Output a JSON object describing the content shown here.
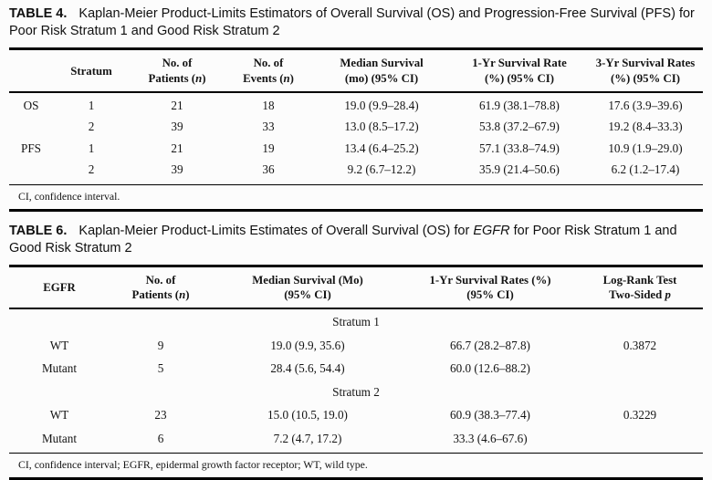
{
  "table4": {
    "label": "TABLE 4.",
    "title": "Kaplan-Meier Product-Limits Estimators of Overall Survival (OS) and Progression-Free Survival (PFS) for Poor Risk Stratum 1 and Good Risk Stratum 2",
    "headers": {
      "col0": "",
      "stratum": "Stratum",
      "patients": "No. of<br>Patients (<i>n</i>)",
      "events": "No. of<br>Events (<i>n</i>)",
      "median": "Median Survival<br>(mo) (95% CI)",
      "yr1": "1-Yr Survival Rate<br>(%) (95% CI)",
      "yr3": "3-Yr Survival Rates<br>(%) (95% CI)"
    },
    "rows": [
      {
        "group": "OS",
        "stratum": "1",
        "patients": "21",
        "events": "18",
        "median": "19.0 (9.9–28.4)",
        "yr1": "61.9 (38.1–78.8)",
        "yr3": "17.6 (3.9–39.6)"
      },
      {
        "group": "",
        "stratum": "2",
        "patients": "39",
        "events": "33",
        "median": "13.0 (8.5–17.2)",
        "yr1": "53.8 (37.2–67.9)",
        "yr3": "19.2 (8.4–33.3)"
      },
      {
        "group": "PFS",
        "stratum": "1",
        "patients": "21",
        "events": "19",
        "median": "13.4 (6.4–25.2)",
        "yr1": "57.1 (33.8–74.9)",
        "yr3": "10.9 (1.9–29.0)"
      },
      {
        "group": "",
        "stratum": "2",
        "patients": "39",
        "events": "36",
        "median": "9.2 (6.7–12.2)",
        "yr1": "35.9 (21.4–50.6)",
        "yr3": "6.2 (1.2–17.4)"
      }
    ],
    "footnote": "CI, confidence interval."
  },
  "table6": {
    "label": "TABLE 6.",
    "title": "Kaplan-Meier Product-Limits Estimates of Overall Survival (OS) for <i>EGFR</i> for Poor Risk Stratum 1 and Good Risk Stratum 2",
    "headers": {
      "egfr": "EGFR",
      "patients": "No. of<br>Patients (<i>n</i>)",
      "median": "Median Survival (Mo)<br>(95% CI)",
      "yr1": "1-Yr Survival Rates (%)<br>(95% CI)",
      "logrank": "Log-Rank Test<br>Two-Sided <i>p</i>"
    },
    "rows": [
      {
        "type": "section",
        "label": "Stratum 1"
      },
      {
        "type": "data",
        "egfr": "WT",
        "patients": "9",
        "median": "19.0 (9.9, 35.6)",
        "yr1": "66.7 (28.2–87.8)",
        "p": "0.3872"
      },
      {
        "type": "data",
        "egfr": "Mutant",
        "patients": "5",
        "median": "28.4 (5.6, 54.4)",
        "yr1": "60.0 (12.6–88.2)",
        "p": ""
      },
      {
        "type": "section",
        "label": "Stratum 2"
      },
      {
        "type": "data",
        "egfr": "WT",
        "patients": "23",
        "median": "15.0 (10.5, 19.0)",
        "yr1": "60.9 (38.3–77.4)",
        "p": "0.3229"
      },
      {
        "type": "data",
        "egfr": "Mutant",
        "patients": "6",
        "median": "7.2 (4.7, 17.2)",
        "yr1": "33.3 (4.6–67.6)",
        "p": ""
      }
    ],
    "footnote": "CI, confidence interval; EGFR, epidermal growth factor receptor; WT, wild type."
  }
}
